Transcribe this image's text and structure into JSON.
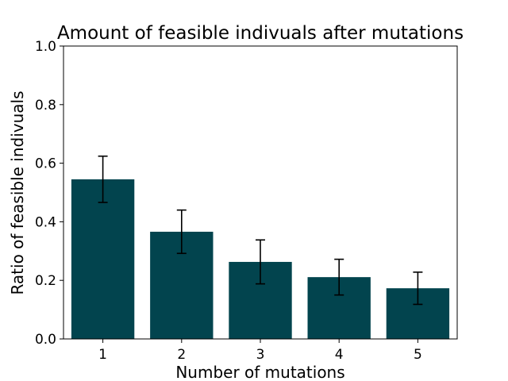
{
  "chart_data": {
    "type": "bar",
    "title": "Amount of feasible indivuals after mutations",
    "xlabel": "Number of mutations",
    "ylabel": "Ratio of feasible indivuals",
    "categories": [
      "1",
      "2",
      "3",
      "4",
      "5"
    ],
    "values": [
      0.545,
      0.366,
      0.263,
      0.211,
      0.173
    ],
    "error_low": [
      0.466,
      0.292,
      0.188,
      0.15,
      0.118
    ],
    "error_high": [
      0.624,
      0.44,
      0.338,
      0.272,
      0.228
    ],
    "ylim": [
      0.0,
      1.0
    ],
    "yticks": [
      "0.0",
      "0.2",
      "0.4",
      "0.6",
      "0.8",
      "1.0"
    ],
    "grid": false,
    "legend": "none",
    "colors": {
      "bar": "#02444e",
      "errorbar": "#000000",
      "axes": "#000000"
    }
  }
}
